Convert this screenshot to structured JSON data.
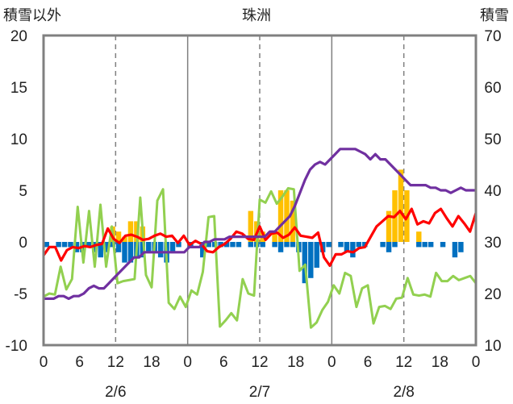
{
  "chart_data": {
    "type": "bar+line",
    "title": "珠洲",
    "left_axis": {
      "label": "積雪以外",
      "min": -10,
      "max": 20,
      "ticks": [
        -10,
        -5,
        0,
        5,
        10,
        15,
        20
      ],
      "tick_labels": [
        "-10",
        "-5",
        "0",
        "5",
        "10",
        "15",
        "20"
      ]
    },
    "right_axis": {
      "label": "積雪",
      "min": 10,
      "max": 70,
      "ticks": [
        10,
        20,
        30,
        40,
        50,
        60,
        70
      ],
      "tick_labels": [
        "10",
        "20",
        "30",
        "40",
        "50",
        "60",
        "70"
      ]
    },
    "x_axis": {
      "hours_total": 72,
      "tick_hours": [
        0,
        6,
        12,
        18,
        24,
        30,
        36,
        42,
        48,
        54,
        60,
        66,
        72
      ],
      "tick_labels": [
        "0",
        "6",
        "12",
        "18",
        "0",
        "6",
        "12",
        "18",
        "0",
        "6",
        "12",
        "18",
        "0"
      ],
      "dates": [
        {
          "hour": 12,
          "label": "2/6"
        },
        {
          "hour": 36,
          "label": "2/7"
        },
        {
          "hour": 60,
          "label": "2/8"
        }
      ],
      "dashed_gridlines_at": [
        12,
        36,
        60
      ],
      "solid_gridlines_at": [
        24,
        48
      ]
    },
    "colors": {
      "precip": "#FFC000",
      "temp_change": "#0070C0",
      "temperature": "#FF0000",
      "snow_depth": "#7030A0",
      "humidity_line": "#92D050",
      "grid": "#808080"
    },
    "series": [
      {
        "kind": "bar",
        "axis": "left",
        "color": "#FFC000",
        "values": [
          0,
          0,
          0,
          0,
          0,
          0,
          0,
          0,
          0,
          0,
          0,
          1.5,
          1,
          0.5,
          2,
          2,
          1.5,
          0,
          0,
          0,
          0,
          0,
          0,
          0,
          0,
          0,
          0,
          0,
          0,
          0,
          0,
          0,
          0,
          0,
          3,
          2,
          1,
          0,
          1,
          5,
          5,
          4,
          0,
          0,
          0,
          0,
          0,
          0,
          0,
          0,
          0,
          0,
          0,
          0,
          0,
          0,
          0,
          3,
          5,
          7,
          5,
          0,
          1,
          0,
          0,
          0,
          0,
          0,
          0,
          0,
          0,
          0
        ]
      },
      {
        "kind": "bar",
        "axis": "left",
        "color": "#0070C0",
        "values": [
          -0.5,
          0,
          -0.5,
          -0.5,
          -0.5,
          -1,
          -1,
          -0.5,
          -1,
          -1.5,
          -1,
          -0.5,
          -1,
          -2,
          -2,
          -1.5,
          -1.5,
          -1,
          -1,
          -1.5,
          -2,
          -1,
          -0.5,
          0,
          -0.5,
          0,
          -1.5,
          -0.5,
          -0.5,
          -0.5,
          -0.5,
          -0.5,
          -0.5,
          0,
          -0.5,
          -0.5,
          -0.5,
          0,
          -0.5,
          -1,
          -0.5,
          -0.5,
          -1,
          -4,
          -3.5,
          -2.5,
          -1,
          -0.5,
          0,
          -0.5,
          -1,
          -1.5,
          -0.5,
          -0.5,
          0,
          0,
          -0.5,
          -1,
          -0.5,
          0,
          0,
          0,
          -0.5,
          -0.5,
          -0.5,
          0,
          -0.5,
          0,
          -1.5,
          -1,
          0,
          0
        ]
      },
      {
        "kind": "line",
        "axis": "left",
        "color": "#FF0000",
        "values": [
          -1.3,
          -0.5,
          -0.5,
          -1.8,
          -0.8,
          -0.5,
          -0.6,
          -0.4,
          -0.5,
          -0.3,
          -0.2,
          1.3,
          0.3,
          -0.1,
          0.6,
          0.7,
          0.5,
          0.2,
          0.3,
          0.6,
          0.8,
          0.5,
          0.6,
          -0.1,
          0.6,
          -0.3,
          0.1,
          -0.2,
          -0.9,
          -1,
          -0.5,
          -0.2,
          0.3,
          1,
          0.8,
          0.3,
          0.2,
          1.5,
          0.2,
          0.8,
          0.9,
          0.4,
          0.7,
          1.4,
          0.6,
          0.5,
          0.4,
          0.9,
          -1.5,
          -2.3,
          -1.2,
          -1.2,
          -0.9,
          -1,
          -0.6,
          -0.5,
          0.5,
          1.5,
          2,
          2.5,
          2.4,
          3,
          2.2,
          3.2,
          1.7,
          2,
          1.8,
          2.8,
          3.2,
          2.3,
          1.5,
          2.5,
          1.8,
          1,
          2.8
        ]
      },
      {
        "kind": "line",
        "axis": "right",
        "color": "#7030A0",
        "values": [
          19,
          19,
          19,
          19.5,
          19.5,
          19,
          19.5,
          19.5,
          20,
          21,
          21.5,
          21,
          21,
          22,
          23,
          24,
          25,
          26,
          27,
          27,
          28,
          28,
          28,
          28,
          28,
          28,
          28,
          28,
          28,
          29,
          29,
          29,
          30,
          30,
          30.5,
          30.5,
          30.5,
          31,
          31,
          31,
          31,
          31,
          31,
          31,
          31,
          32,
          32,
          33,
          34,
          35,
          37,
          39.5,
          42,
          44,
          45,
          45.5,
          45,
          46,
          47,
          48,
          48,
          48,
          48,
          47.5,
          47,
          46,
          47,
          46,
          46,
          45,
          44,
          43,
          42,
          41,
          41,
          41,
          41,
          40.5,
          40.5,
          40,
          40,
          39.5,
          40,
          40.5,
          40,
          40,
          40
        ]
      },
      {
        "kind": "line",
        "axis": "left",
        "color": "#92D050",
        "values": [
          -5.3,
          -5,
          -5.1,
          -2.4,
          -4.6,
          -3.6,
          3.4,
          -2,
          3,
          -2.4,
          3.6,
          -2.4,
          1.5,
          -4,
          -3.8,
          -3.7,
          -3.6,
          4.3,
          -3.2,
          -4.4,
          4,
          5.1,
          -5.9,
          -6.5,
          -5.3,
          -6.3,
          -4.7,
          -5.1,
          -2.9,
          2.4,
          2.5,
          -8.2,
          -7.6,
          -6.9,
          -7.6,
          -3.6,
          -5,
          -5.2,
          4.1,
          3.8,
          4.9,
          3.7,
          4.4,
          5.2,
          5.1,
          -2.8,
          -2.2,
          -8.3,
          -7.8,
          -6.6,
          -5.8,
          -4.2,
          -5,
          -3,
          -3.3,
          -6.3,
          -4.5,
          -4.2,
          -7.9,
          -6.3,
          -6.2,
          -6.5,
          -5.5,
          -5.4,
          -3.5,
          -5.1,
          -5.2,
          -5.1,
          -5.3,
          -3,
          -3.8,
          -3.8,
          -3.3,
          -3.7,
          -3.5,
          -3.3,
          -4
        ]
      }
    ]
  }
}
